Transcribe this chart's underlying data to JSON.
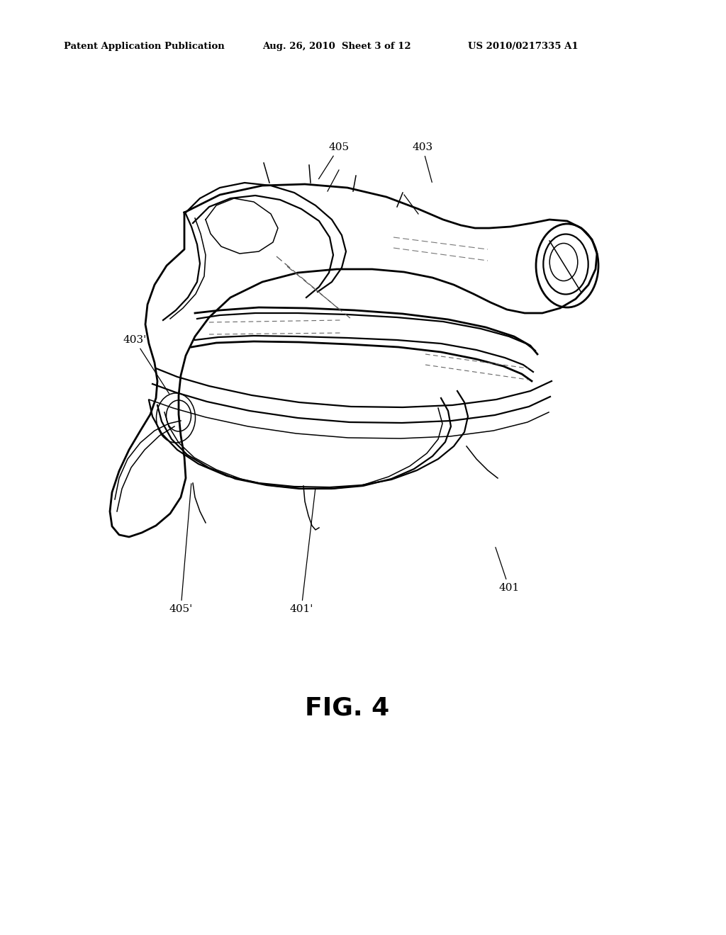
{
  "background_color": "#ffffff",
  "header_left": "Patent Application Publication",
  "header_center": "Aug. 26, 2010  Sheet 3 of 12",
  "header_right": "US 2010/0217335 A1",
  "fig_label": "FIG. 4"
}
